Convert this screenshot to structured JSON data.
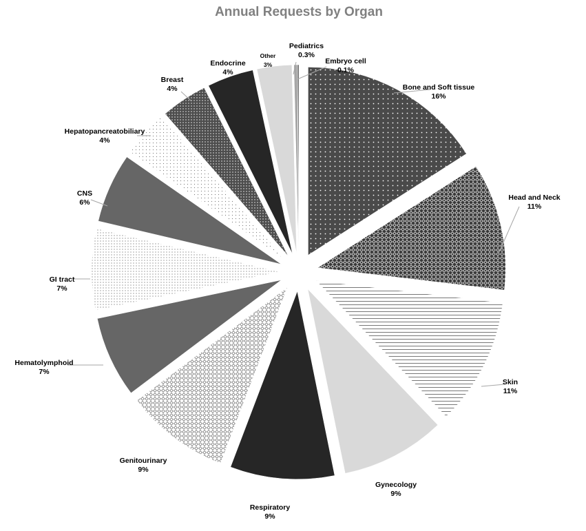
{
  "chart_data": {
    "type": "pie",
    "title": "Annual Requests by Organ",
    "slices": [
      {
        "label": "Bone and Soft tissue",
        "value": 16,
        "pct_label": "16%",
        "fill": "dots-dark"
      },
      {
        "label": "Head and Neck",
        "value": 11,
        "pct_label": "11%",
        "fill": "diamond-dark"
      },
      {
        "label": "Skin",
        "value": 11,
        "pct_label": "11%",
        "fill": "horizontal-lines"
      },
      {
        "label": "Gynecology",
        "value": 9,
        "pct_label": "9%",
        "fill": "#d9d9d9"
      },
      {
        "label": "Respiratory",
        "value": 9,
        "pct_label": "9%",
        "fill": "#262626"
      },
      {
        "label": "Genitourinary",
        "value": 9,
        "pct_label": "9%",
        "fill": "diamond-light"
      },
      {
        "label": "Hematolymphoid",
        "value": 7,
        "pct_label": "7%",
        "fill": "#666666"
      },
      {
        "label": "GI tract",
        "value": 7,
        "pct_label": "7%",
        "fill": "dots-light"
      },
      {
        "label": "CNS",
        "value": 6,
        "pct_label": "6%",
        "fill": "#666666"
      },
      {
        "label": "Hepatopancreatobiliary",
        "value": 4,
        "pct_label": "4%",
        "fill": "dots-sparse"
      },
      {
        "label": "Breast",
        "value": 4,
        "pct_label": "4%",
        "fill": "dots-dense"
      },
      {
        "label": "Endocrine",
        "value": 4,
        "pct_label": "4%",
        "fill": "#262626"
      },
      {
        "label": "Other",
        "value": 3,
        "pct_label": "3%",
        "fill": "#d9d9d9"
      },
      {
        "label": "Pediatrics",
        "value": 0.3,
        "pct_label": "0.3%",
        "fill": "#a6a6a6"
      },
      {
        "label": "Embryo cell",
        "value": 0.1,
        "pct_label": "0.1%",
        "fill": "#262626"
      }
    ],
    "legend": "none",
    "data_labels": "outside with leader lines",
    "exploded": true
  }
}
